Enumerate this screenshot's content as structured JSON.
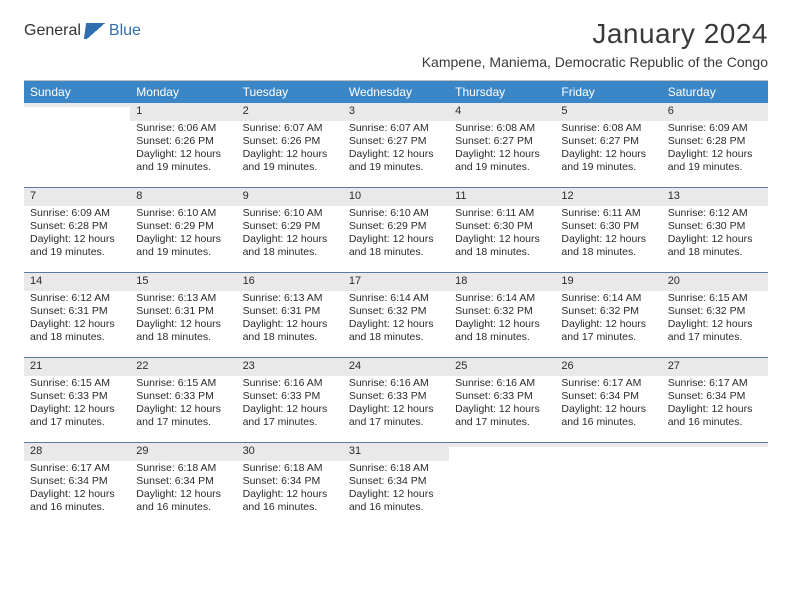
{
  "brand": {
    "part1": "General",
    "part2": "Blue"
  },
  "title": {
    "month": "January 2024",
    "location": "Kampene, Maniema, Democratic Republic of the Congo"
  },
  "colors": {
    "header_bg": "#3b86c6",
    "header_text": "#ffffff",
    "daynum_bg": "#e9e9e9",
    "week_border": "#5b7a9e",
    "cell_text": "#2b2b2b"
  },
  "layout": {
    "columns": 7,
    "rows": 5
  },
  "day_headers": [
    "Sunday",
    "Monday",
    "Tuesday",
    "Wednesday",
    "Thursday",
    "Friday",
    "Saturday"
  ],
  "weeks": [
    [
      {
        "num": "",
        "sunrise": "",
        "sunset": "",
        "daylight1": "",
        "daylight2": ""
      },
      {
        "num": "1",
        "sunrise": "Sunrise: 6:06 AM",
        "sunset": "Sunset: 6:26 PM",
        "daylight1": "Daylight: 12 hours",
        "daylight2": "and 19 minutes."
      },
      {
        "num": "2",
        "sunrise": "Sunrise: 6:07 AM",
        "sunset": "Sunset: 6:26 PM",
        "daylight1": "Daylight: 12 hours",
        "daylight2": "and 19 minutes."
      },
      {
        "num": "3",
        "sunrise": "Sunrise: 6:07 AM",
        "sunset": "Sunset: 6:27 PM",
        "daylight1": "Daylight: 12 hours",
        "daylight2": "and 19 minutes."
      },
      {
        "num": "4",
        "sunrise": "Sunrise: 6:08 AM",
        "sunset": "Sunset: 6:27 PM",
        "daylight1": "Daylight: 12 hours",
        "daylight2": "and 19 minutes."
      },
      {
        "num": "5",
        "sunrise": "Sunrise: 6:08 AM",
        "sunset": "Sunset: 6:27 PM",
        "daylight1": "Daylight: 12 hours",
        "daylight2": "and 19 minutes."
      },
      {
        "num": "6",
        "sunrise": "Sunrise: 6:09 AM",
        "sunset": "Sunset: 6:28 PM",
        "daylight1": "Daylight: 12 hours",
        "daylight2": "and 19 minutes."
      }
    ],
    [
      {
        "num": "7",
        "sunrise": "Sunrise: 6:09 AM",
        "sunset": "Sunset: 6:28 PM",
        "daylight1": "Daylight: 12 hours",
        "daylight2": "and 19 minutes."
      },
      {
        "num": "8",
        "sunrise": "Sunrise: 6:10 AM",
        "sunset": "Sunset: 6:29 PM",
        "daylight1": "Daylight: 12 hours",
        "daylight2": "and 19 minutes."
      },
      {
        "num": "9",
        "sunrise": "Sunrise: 6:10 AM",
        "sunset": "Sunset: 6:29 PM",
        "daylight1": "Daylight: 12 hours",
        "daylight2": "and 18 minutes."
      },
      {
        "num": "10",
        "sunrise": "Sunrise: 6:10 AM",
        "sunset": "Sunset: 6:29 PM",
        "daylight1": "Daylight: 12 hours",
        "daylight2": "and 18 minutes."
      },
      {
        "num": "11",
        "sunrise": "Sunrise: 6:11 AM",
        "sunset": "Sunset: 6:30 PM",
        "daylight1": "Daylight: 12 hours",
        "daylight2": "and 18 minutes."
      },
      {
        "num": "12",
        "sunrise": "Sunrise: 6:11 AM",
        "sunset": "Sunset: 6:30 PM",
        "daylight1": "Daylight: 12 hours",
        "daylight2": "and 18 minutes."
      },
      {
        "num": "13",
        "sunrise": "Sunrise: 6:12 AM",
        "sunset": "Sunset: 6:30 PM",
        "daylight1": "Daylight: 12 hours",
        "daylight2": "and 18 minutes."
      }
    ],
    [
      {
        "num": "14",
        "sunrise": "Sunrise: 6:12 AM",
        "sunset": "Sunset: 6:31 PM",
        "daylight1": "Daylight: 12 hours",
        "daylight2": "and 18 minutes."
      },
      {
        "num": "15",
        "sunrise": "Sunrise: 6:13 AM",
        "sunset": "Sunset: 6:31 PM",
        "daylight1": "Daylight: 12 hours",
        "daylight2": "and 18 minutes."
      },
      {
        "num": "16",
        "sunrise": "Sunrise: 6:13 AM",
        "sunset": "Sunset: 6:31 PM",
        "daylight1": "Daylight: 12 hours",
        "daylight2": "and 18 minutes."
      },
      {
        "num": "17",
        "sunrise": "Sunrise: 6:14 AM",
        "sunset": "Sunset: 6:32 PM",
        "daylight1": "Daylight: 12 hours",
        "daylight2": "and 18 minutes."
      },
      {
        "num": "18",
        "sunrise": "Sunrise: 6:14 AM",
        "sunset": "Sunset: 6:32 PM",
        "daylight1": "Daylight: 12 hours",
        "daylight2": "and 18 minutes."
      },
      {
        "num": "19",
        "sunrise": "Sunrise: 6:14 AM",
        "sunset": "Sunset: 6:32 PM",
        "daylight1": "Daylight: 12 hours",
        "daylight2": "and 17 minutes."
      },
      {
        "num": "20",
        "sunrise": "Sunrise: 6:15 AM",
        "sunset": "Sunset: 6:32 PM",
        "daylight1": "Daylight: 12 hours",
        "daylight2": "and 17 minutes."
      }
    ],
    [
      {
        "num": "21",
        "sunrise": "Sunrise: 6:15 AM",
        "sunset": "Sunset: 6:33 PM",
        "daylight1": "Daylight: 12 hours",
        "daylight2": "and 17 minutes."
      },
      {
        "num": "22",
        "sunrise": "Sunrise: 6:15 AM",
        "sunset": "Sunset: 6:33 PM",
        "daylight1": "Daylight: 12 hours",
        "daylight2": "and 17 minutes."
      },
      {
        "num": "23",
        "sunrise": "Sunrise: 6:16 AM",
        "sunset": "Sunset: 6:33 PM",
        "daylight1": "Daylight: 12 hours",
        "daylight2": "and 17 minutes."
      },
      {
        "num": "24",
        "sunrise": "Sunrise: 6:16 AM",
        "sunset": "Sunset: 6:33 PM",
        "daylight1": "Daylight: 12 hours",
        "daylight2": "and 17 minutes."
      },
      {
        "num": "25",
        "sunrise": "Sunrise: 6:16 AM",
        "sunset": "Sunset: 6:33 PM",
        "daylight1": "Daylight: 12 hours",
        "daylight2": "and 17 minutes."
      },
      {
        "num": "26",
        "sunrise": "Sunrise: 6:17 AM",
        "sunset": "Sunset: 6:34 PM",
        "daylight1": "Daylight: 12 hours",
        "daylight2": "and 16 minutes."
      },
      {
        "num": "27",
        "sunrise": "Sunrise: 6:17 AM",
        "sunset": "Sunset: 6:34 PM",
        "daylight1": "Daylight: 12 hours",
        "daylight2": "and 16 minutes."
      }
    ],
    [
      {
        "num": "28",
        "sunrise": "Sunrise: 6:17 AM",
        "sunset": "Sunset: 6:34 PM",
        "daylight1": "Daylight: 12 hours",
        "daylight2": "and 16 minutes."
      },
      {
        "num": "29",
        "sunrise": "Sunrise: 6:18 AM",
        "sunset": "Sunset: 6:34 PM",
        "daylight1": "Daylight: 12 hours",
        "daylight2": "and 16 minutes."
      },
      {
        "num": "30",
        "sunrise": "Sunrise: 6:18 AM",
        "sunset": "Sunset: 6:34 PM",
        "daylight1": "Daylight: 12 hours",
        "daylight2": "and 16 minutes."
      },
      {
        "num": "31",
        "sunrise": "Sunrise: 6:18 AM",
        "sunset": "Sunset: 6:34 PM",
        "daylight1": "Daylight: 12 hours",
        "daylight2": "and 16 minutes."
      },
      {
        "num": "",
        "sunrise": "",
        "sunset": "",
        "daylight1": "",
        "daylight2": ""
      },
      {
        "num": "",
        "sunrise": "",
        "sunset": "",
        "daylight1": "",
        "daylight2": ""
      },
      {
        "num": "",
        "sunrise": "",
        "sunset": "",
        "daylight1": "",
        "daylight2": ""
      }
    ]
  ]
}
